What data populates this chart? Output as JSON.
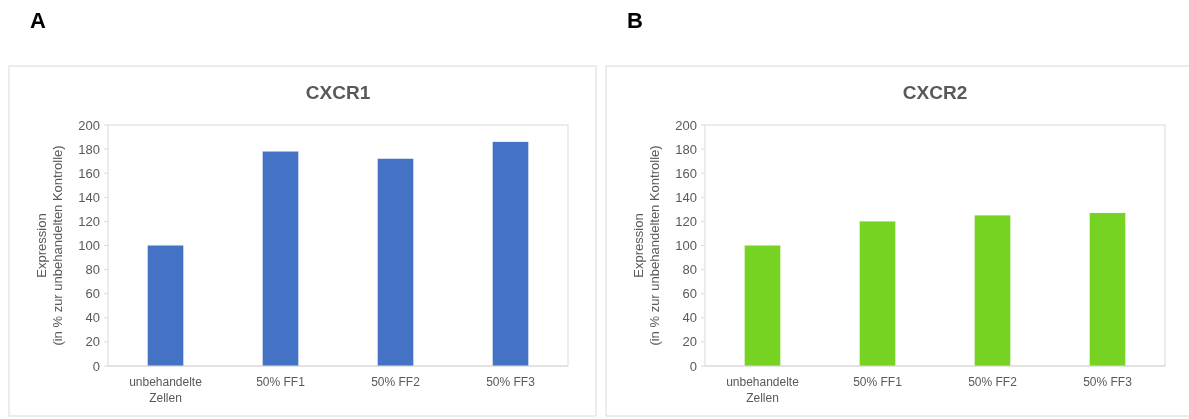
{
  "chart_data": [
    {
      "type": "bar",
      "title": "CXCR1",
      "ylabel": "Expression\n(in % zur unbehandelten Kontrolle)",
      "annotations": [
        "A"
      ],
      "categories": [
        "unbehandelte Zellen",
        "50% FF1",
        "50% FF2",
        "50% FF3"
      ],
      "values": [
        100,
        178,
        172,
        186
      ],
      "color": "#4472c4",
      "ylim": [
        0,
        200
      ],
      "yticks": [
        0,
        20,
        40,
        60,
        80,
        100,
        120,
        140,
        160,
        180,
        200
      ],
      "grid": false
    },
    {
      "type": "bar",
      "title": "CXCR2",
      "ylabel": "Expression\n(in % zur unbehandelten Kontrolle)",
      "annotations": [
        "B"
      ],
      "categories": [
        "unbehandelte Zellen",
        "50% FF1",
        "50% FF2",
        "50% FF3"
      ],
      "values": [
        100,
        120,
        125,
        127
      ],
      "color": "#77d322",
      "ylim": [
        0,
        200
      ],
      "yticks": [
        0,
        20,
        40,
        60,
        80,
        100,
        120,
        140,
        160,
        180,
        200
      ],
      "grid": false
    }
  ]
}
